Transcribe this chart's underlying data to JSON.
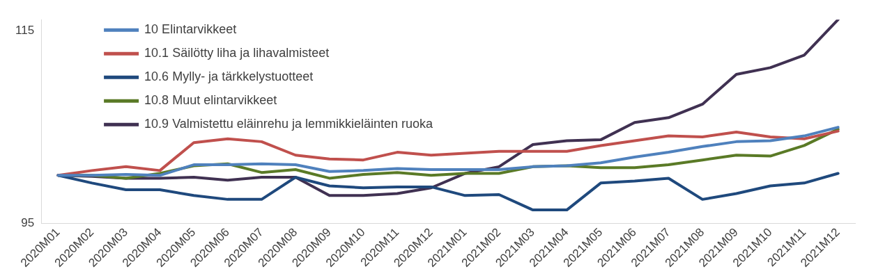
{
  "chart_data": {
    "type": "line",
    "categories": [
      "2020M01",
      "2020M02",
      "2020M03",
      "2020M04",
      "2020M05",
      "2020M06",
      "2020M07",
      "2020M08",
      "2020M09",
      "2020M10",
      "2020M11",
      "2020M12",
      "2021M01",
      "2021M02",
      "2021M03",
      "2021M04",
      "2021M05",
      "2021M06",
      "2021M07",
      "2021M08",
      "2021M09",
      "2021M10",
      "2021M11",
      "2021M12"
    ],
    "series": [
      {
        "name": "10 Elintarvikkeet",
        "color": "#4f81bd",
        "values": [
          100,
          100,
          100.1,
          100,
          101.1,
          101.1,
          101.2,
          101.1,
          100.4,
          100.5,
          100.7,
          100.6,
          100.6,
          100.6,
          100.9,
          101.0,
          101.3,
          101.9,
          102.4,
          103.0,
          103.5,
          103.6,
          104.1,
          105.0
        ]
      },
      {
        "name": "10.1 Säilötty liha ja lihavalmisteet",
        "color": "#c0504d",
        "values": [
          100,
          100.5,
          100.9,
          100.5,
          103.4,
          103.8,
          103.5,
          102.1,
          101.7,
          101.6,
          102.4,
          102.1,
          102.3,
          102.5,
          102.5,
          102.5,
          103.1,
          103.6,
          104.1,
          104.0,
          104.5,
          104.0,
          103.8,
          104.6
        ]
      },
      {
        "name": "10.6 Mylly- ja tärkkelystuotteet",
        "color": "#1f497d",
        "values": [
          100,
          99.2,
          98.5,
          98.5,
          97.9,
          97.5,
          97.5,
          99.8,
          98.9,
          98.7,
          98.8,
          98.8,
          97.9,
          98.0,
          96.4,
          96.4,
          99.2,
          99.4,
          99.7,
          97.5,
          98.1,
          98.9,
          99.2,
          100.2
        ]
      },
      {
        "name": "10.8 Muut elintarvikkeet",
        "color": "#5a7a26",
        "values": [
          100,
          100,
          99.7,
          100.2,
          101.0,
          101.2,
          100.3,
          100.6,
          99.7,
          100.1,
          100.3,
          100.0,
          100.2,
          100.2,
          100.9,
          101.0,
          100.8,
          100.8,
          101.1,
          101.6,
          102.1,
          102.0,
          103.1,
          104.8
        ]
      },
      {
        "name": "10.9 Valmistettu eläinrehu ja lemmikkieläinten ruoka",
        "color": "#403152",
        "values": [
          100,
          99.9,
          99.7,
          99.7,
          99.8,
          99.5,
          99.8,
          99.8,
          97.9,
          97.9,
          98.1,
          98.7,
          100.2,
          100.9,
          103.2,
          103.6,
          103.7,
          105.5,
          106.0,
          107.4,
          110.5,
          111.2,
          112.5,
          116.2
        ]
      }
    ],
    "ylim": [
      95,
      116.2
    ],
    "yticks": [
      95,
      115
    ],
    "grid": false,
    "legend": "top left",
    "marker": "none",
    "line_style": "solid"
  }
}
